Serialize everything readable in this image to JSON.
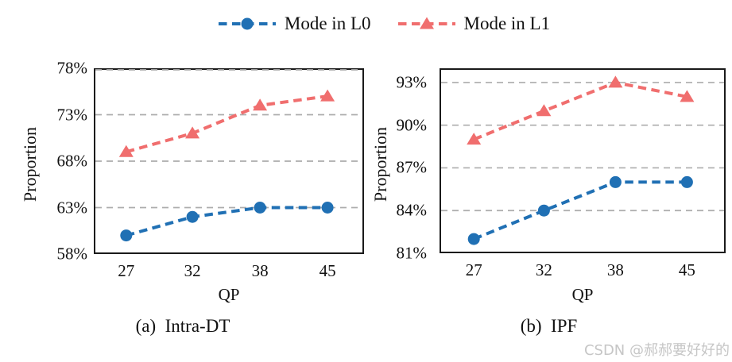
{
  "legend": {
    "items": [
      {
        "label": "Mode in L0",
        "color": "#2070b4",
        "marker": "circle"
      },
      {
        "label": "Mode in L1",
        "color": "#f06e6e",
        "marker": "triangle"
      }
    ]
  },
  "watermark": "CSDN @郝郝要好好的",
  "colors": {
    "series_l0": "#2070b4",
    "series_l1": "#f06e6e",
    "gridline": "#acacac",
    "axis_border": "#1a1a1a",
    "text": "#111111",
    "watermark": "#c6c6c6"
  },
  "chart_data": [
    {
      "type": "line",
      "title": "(a)  Intra-DT",
      "xlabel": "QP",
      "ylabel": "Proportion",
      "categories": [
        "27",
        "32",
        "38",
        "45"
      ],
      "x_values": [
        27,
        32,
        38,
        45
      ],
      "ylim": [
        58,
        78
      ],
      "yticks": [
        {
          "v": 58,
          "label": "58%"
        },
        {
          "v": 63,
          "label": "63%"
        },
        {
          "v": 68,
          "label": "68%"
        },
        {
          "v": 73,
          "label": "73%"
        },
        {
          "v": 78,
          "label": "78%"
        }
      ],
      "gridlines": [
        63,
        68,
        73,
        78
      ],
      "grid": true,
      "legend_position": "top-center-shared",
      "series": [
        {
          "name": "Mode in L0",
          "color": "#2070b4",
          "marker": "circle",
          "values": [
            60,
            62,
            63,
            63
          ]
        },
        {
          "name": "Mode in L1",
          "color": "#f06e6e",
          "marker": "triangle",
          "values": [
            69,
            71,
            74,
            75
          ]
        }
      ]
    },
    {
      "type": "line",
      "title": "(b)  IPF",
      "xlabel": "QP",
      "ylabel": "Proportion",
      "categories": [
        "27",
        "32",
        "38",
        "45"
      ],
      "x_values": [
        27,
        32,
        38,
        45
      ],
      "ylim": [
        81,
        94
      ],
      "yticks": [
        {
          "v": 81,
          "label": "81%"
        },
        {
          "v": 84,
          "label": "84%"
        },
        {
          "v": 87,
          "label": "87%"
        },
        {
          "v": 90,
          "label": "90%"
        },
        {
          "v": 93,
          "label": "93%"
        }
      ],
      "gridlines": [
        84,
        87,
        90,
        93
      ],
      "grid": true,
      "legend_position": "top-center-shared",
      "series": [
        {
          "name": "Mode in L0",
          "color": "#2070b4",
          "marker": "circle",
          "values": [
            82,
            84,
            86,
            86
          ]
        },
        {
          "name": "Mode in L1",
          "color": "#f06e6e",
          "marker": "triangle",
          "values": [
            89,
            91,
            93,
            92
          ]
        }
      ]
    }
  ]
}
